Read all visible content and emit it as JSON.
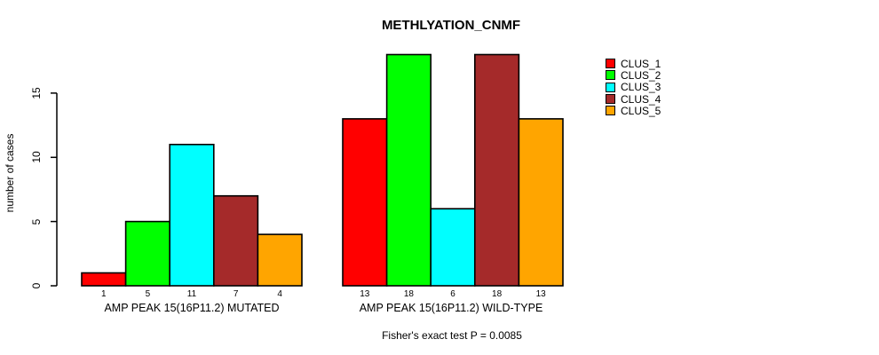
{
  "figure": {
    "title": "METHLYATION_CNMF",
    "y_axis_title": "number of cases",
    "footnote": "Fisher's exact test P = 0.0085"
  },
  "chart_data": {
    "type": "bar",
    "title": "METHLYATION_CNMF",
    "xlabel": "",
    "ylabel": "number of cases",
    "ylim": [
      0,
      18.2
    ],
    "yticks": [
      0,
      5,
      10,
      15
    ],
    "grid": false,
    "legend_position": "right",
    "bar_value_labels_shown": true,
    "series": [
      {
        "name": "CLUS_1",
        "color": "#FF0000"
      },
      {
        "name": "CLUS_2",
        "color": "#00FF00"
      },
      {
        "name": "CLUS_3",
        "color": "#00FFFF"
      },
      {
        "name": "CLUS_4",
        "color": "#A52A2A"
      },
      {
        "name": "CLUS_5",
        "color": "#FFA500"
      }
    ],
    "groups": [
      {
        "label": "AMP PEAK 15(16P11.2) MUTATED",
        "values": [
          1,
          5,
          11,
          7,
          4
        ]
      },
      {
        "label": "AMP PEAK 15(16P11.2) WILD-TYPE",
        "values": [
          13,
          18,
          6,
          18,
          13
        ]
      }
    ],
    "annotation": "Fisher's exact test P = 0.0085"
  }
}
